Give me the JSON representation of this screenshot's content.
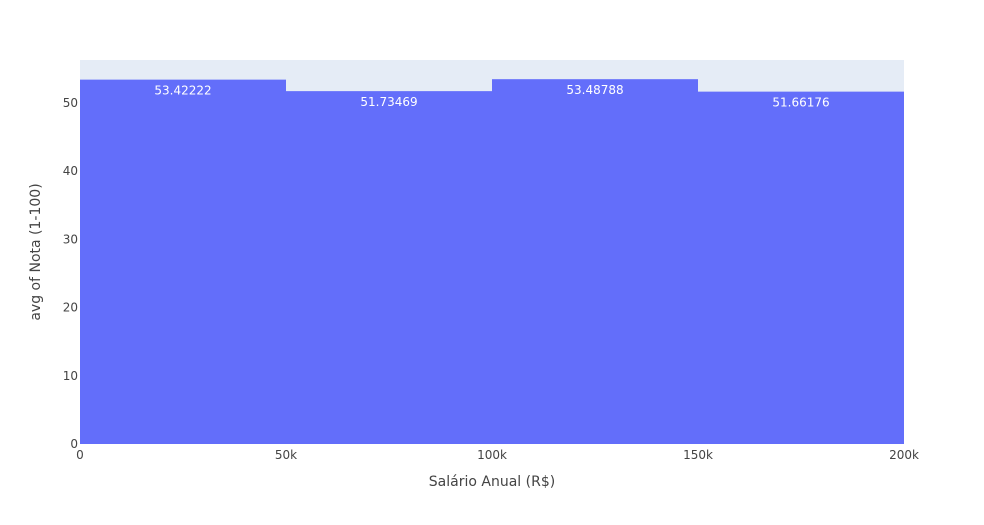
{
  "chart_data": {
    "type": "bar",
    "bins": [
      {
        "x0": 0,
        "x1": 50000,
        "value": 53.42222,
        "label": "53.42222"
      },
      {
        "x0": 50000,
        "x1": 100000,
        "value": 51.73469,
        "label": "51.73469"
      },
      {
        "x0": 100000,
        "x1": 150000,
        "value": 53.48788,
        "label": "53.48788"
      },
      {
        "x0": 150000,
        "x1": 200000,
        "value": 51.66176,
        "label": "51.66176"
      }
    ],
    "xlabel": "Salário Anual (R$)",
    "ylabel": "avg of Nota (1-100)",
    "xlim": [
      0,
      200000
    ],
    "ylim": [
      0,
      56.3
    ],
    "xticks": [
      {
        "value": 0,
        "label": "0"
      },
      {
        "value": 50000,
        "label": "50k"
      },
      {
        "value": 100000,
        "label": "100k"
      },
      {
        "value": 150000,
        "label": "150k"
      },
      {
        "value": 200000,
        "label": "200k"
      }
    ],
    "yticks": [
      {
        "value": 0,
        "label": "0"
      },
      {
        "value": 10,
        "label": "10"
      },
      {
        "value": 20,
        "label": "20"
      },
      {
        "value": 30,
        "label": "30"
      },
      {
        "value": 40,
        "label": "40"
      },
      {
        "value": 50,
        "label": "50"
      }
    ],
    "grid": true,
    "colors": {
      "bar": "#636efa",
      "plot_background": "#e5ecf6",
      "grid": "#ffffff",
      "text": "#444444"
    }
  }
}
